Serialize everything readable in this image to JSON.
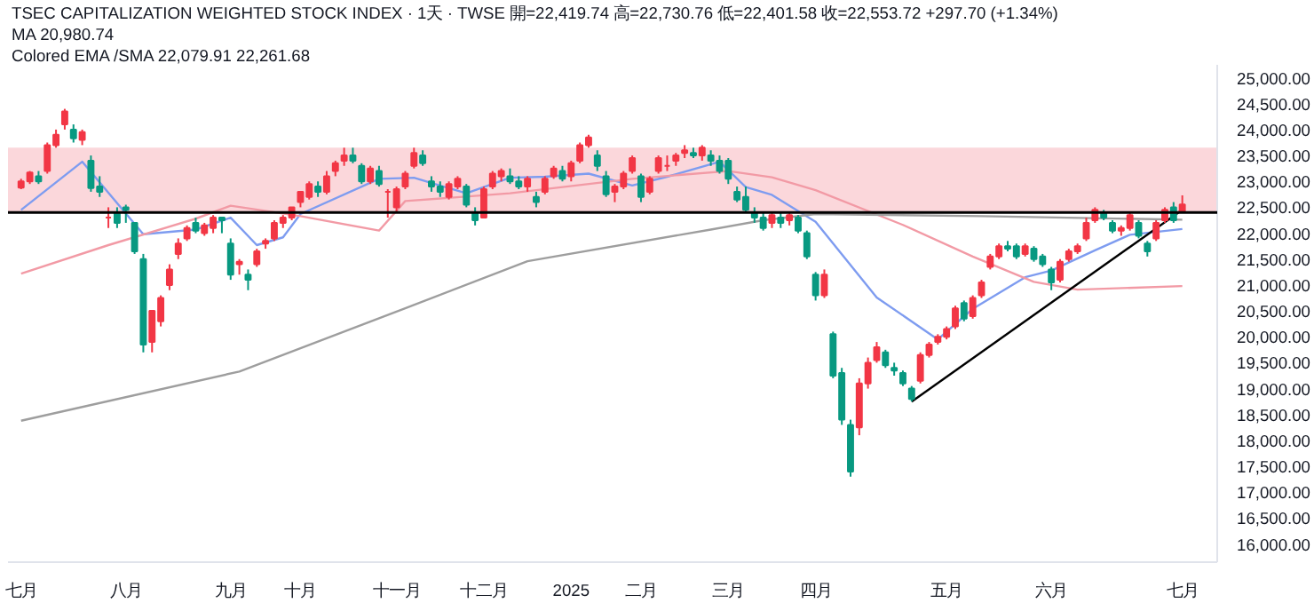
{
  "chart_data": {
    "type": "candlestick",
    "title": "TSEC CAPITALIZATION WEIGHTED STOCK INDEX · 1天 · TWSE  開=22,419.74  高=22,730.76  低=22,401.58  收=22,553.72  +297.70 (+1.34%)",
    "annotations": [
      "MA  20,980.74",
      "Colored EMA /SMA  22,079.91  22,261.68"
    ],
    "categories": [
      "七月",
      null,
      null,
      null,
      null,
      null,
      null,
      null,
      null,
      null,
      null,
      null,
      "八月",
      null,
      null,
      null,
      null,
      null,
      null,
      null,
      null,
      null,
      null,
      null,
      "九月",
      null,
      null,
      null,
      null,
      null,
      null,
      null,
      "十月",
      null,
      null,
      null,
      null,
      null,
      null,
      null,
      null,
      null,
      null,
      "十一月",
      null,
      null,
      null,
      null,
      null,
      null,
      null,
      null,
      null,
      "十二月",
      null,
      null,
      null,
      null,
      null,
      null,
      null,
      null,
      null,
      "2025",
      null,
      null,
      null,
      null,
      null,
      null,
      null,
      "二月",
      null,
      null,
      null,
      null,
      null,
      null,
      null,
      null,
      null,
      "三月",
      null,
      null,
      null,
      null,
      null,
      null,
      null,
      null,
      null,
      "四月",
      null,
      null,
      null,
      null,
      null,
      null,
      null,
      null,
      null,
      null,
      null,
      null,
      null,
      null,
      "五月",
      null,
      null,
      null,
      null,
      null,
      null,
      null,
      null,
      null,
      null,
      null,
      "六月",
      null,
      null,
      null,
      null,
      null,
      null,
      null,
      null,
      null,
      null,
      null,
      null,
      null,
      null,
      "七月"
    ],
    "ohlc": [
      [
        22880,
        23050,
        22850,
        23000
      ],
      [
        23000,
        23200,
        22950,
        23170
      ],
      [
        23100,
        23200,
        22950,
        23000
      ],
      [
        23200,
        23750,
        23150,
        23700
      ],
      [
        23700,
        24000,
        23650,
        23900
      ],
      [
        24100,
        24400,
        24000,
        24350
      ],
      [
        24000,
        24100,
        23750,
        23830
      ],
      [
        23800,
        24000,
        23700,
        23950
      ],
      [
        23400,
        23500,
        22800,
        22870
      ],
      [
        22900,
        23100,
        22700,
        22800
      ],
      [
        22300,
        22500,
        22100,
        22300
      ],
      [
        22400,
        22500,
        22100,
        22200
      ],
      [
        22500,
        22550,
        22200,
        22450
      ],
      [
        22200,
        22200,
        21600,
        21650
      ],
      [
        21500,
        21600,
        19700,
        19850
      ],
      [
        19900,
        20500,
        19700,
        20500
      ],
      [
        20300,
        20800,
        20200,
        20750
      ],
      [
        21000,
        21400,
        20900,
        21300
      ],
      [
        21600,
        21900,
        21500,
        21800
      ],
      [
        21900,
        22150,
        21850,
        22100
      ],
      [
        22200,
        22300,
        22000,
        22050
      ],
      [
        22000,
        22200,
        21950,
        22150
      ],
      [
        22100,
        22350,
        22000,
        22300
      ],
      [
        22300,
        22300,
        22000,
        22250
      ],
      [
        21800,
        21900,
        21100,
        21200
      ],
      [
        21400,
        21500,
        21200,
        21450
      ],
      [
        21200,
        21300,
        20900,
        21100
      ],
      [
        21400,
        21700,
        21350,
        21650
      ],
      [
        21800,
        21900,
        21700,
        21850
      ],
      [
        21900,
        22250,
        21850,
        22200
      ],
      [
        22200,
        22350,
        22100,
        22300
      ],
      [
        22300,
        22500,
        22250,
        22500
      ],
      [
        22600,
        22800,
        22500,
        22800
      ],
      [
        22700,
        23000,
        22650,
        22950
      ],
      [
        22900,
        23000,
        22700,
        22800
      ],
      [
        22800,
        23200,
        22750,
        23100
      ],
      [
        23200,
        23400,
        23100,
        23350
      ],
      [
        23400,
        23650,
        23300,
        23500
      ],
      [
        23500,
        23650,
        23350,
        23400
      ],
      [
        23300,
        23350,
        22950,
        23000
      ],
      [
        23000,
        23300,
        22950,
        23250
      ],
      [
        23200,
        23300,
        22900,
        22950
      ],
      [
        22800,
        22850,
        22300,
        22800
      ],
      [
        22500,
        22900,
        22400,
        22850
      ],
      [
        22900,
        23200,
        22850,
        23150
      ],
      [
        23300,
        23650,
        23250,
        23550
      ],
      [
        23500,
        23600,
        23300,
        23350
      ],
      [
        23000,
        23100,
        22800,
        22900
      ],
      [
        22900,
        23000,
        22700,
        22800
      ],
      [
        22700,
        23000,
        22650,
        22950
      ],
      [
        22900,
        23100,
        22850,
        23050
      ],
      [
        22900,
        22950,
        22500,
        22550
      ],
      [
        22400,
        22500,
        22150,
        22250
      ],
      [
        22300,
        22900,
        22300,
        22850
      ],
      [
        22900,
        23200,
        22850,
        23150
      ],
      [
        23100,
        23250,
        23000,
        23200
      ],
      [
        23100,
        23250,
        22950,
        23000
      ],
      [
        23000,
        23100,
        22850,
        22900
      ],
      [
        22900,
        23100,
        22800,
        23050
      ],
      [
        22700,
        22800,
        22500,
        22600
      ],
      [
        22800,
        23100,
        22750,
        23050
      ],
      [
        23100,
        23300,
        23050,
        23250
      ],
      [
        23200,
        23300,
        23000,
        23050
      ],
      [
        23100,
        23400,
        23000,
        23350
      ],
      [
        23400,
        23750,
        23350,
        23700
      ],
      [
        23700,
        23900,
        23650,
        23850
      ],
      [
        23500,
        23600,
        23200,
        23300
      ],
      [
        23100,
        23200,
        22700,
        22750
      ],
      [
        22800,
        22950,
        22600,
        22900
      ],
      [
        22900,
        23200,
        22850,
        23150
      ],
      [
        23200,
        23500,
        23150,
        23450
      ],
      [
        23100,
        23150,
        22600,
        22700
      ],
      [
        22800,
        23100,
        22750,
        23050
      ],
      [
        23200,
        23500,
        23150,
        23450
      ],
      [
        23300,
        23500,
        23200,
        23300
      ],
      [
        23400,
        23550,
        23300,
        23500
      ],
      [
        23550,
        23700,
        23450,
        23600
      ],
      [
        23550,
        23650,
        23450,
        23500
      ],
      [
        23500,
        23700,
        23400,
        23650
      ],
      [
        23500,
        23600,
        23300,
        23400
      ],
      [
        23400,
        23500,
        23150,
        23200
      ],
      [
        23400,
        23450,
        22950,
        23050
      ],
      [
        22800,
        22900,
        22600,
        22650
      ],
      [
        22700,
        22900,
        22400,
        22450
      ],
      [
        22400,
        22500,
        22200,
        22300
      ],
      [
        22300,
        22400,
        22050,
        22100
      ],
      [
        22200,
        22400,
        22100,
        22350
      ],
      [
        22300,
        22400,
        22100,
        22200
      ],
      [
        22250,
        22400,
        22150,
        22350
      ],
      [
        22300,
        22350,
        22000,
        22050
      ],
      [
        22000,
        22050,
        21500,
        21550
      ],
      [
        21200,
        21250,
        20700,
        20800
      ],
      [
        20800,
        21300,
        20750,
        21200
      ],
      [
        20050,
        20100,
        19200,
        19250
      ],
      [
        19300,
        19400,
        18300,
        18400
      ],
      [
        18300,
        18400,
        17300,
        17400
      ],
      [
        18250,
        19200,
        18100,
        19100
      ],
      [
        19100,
        19600,
        19000,
        19500
      ],
      [
        19550,
        19900,
        19500,
        19800
      ],
      [
        19700,
        19750,
        19400,
        19450
      ],
      [
        19400,
        19500,
        19250,
        19350
      ],
      [
        19300,
        19350,
        19050,
        19100
      ],
      [
        19000,
        19050,
        18750,
        18800
      ],
      [
        19150,
        19700,
        19100,
        19650
      ],
      [
        19650,
        19900,
        19600,
        19850
      ],
      [
        19900,
        20050,
        19850,
        20000
      ],
      [
        20000,
        20200,
        19950,
        20150
      ],
      [
        20200,
        20600,
        20150,
        20550
      ],
      [
        20650,
        20700,
        20300,
        20350
      ],
      [
        20400,
        20800,
        20350,
        20750
      ],
      [
        20800,
        21100,
        20750,
        21050
      ],
      [
        21350,
        21600,
        21300,
        21550
      ],
      [
        21550,
        21800,
        21500,
        21750
      ],
      [
        21750,
        21850,
        21650,
        21700
      ],
      [
        21750,
        21800,
        21500,
        21550
      ],
      [
        21600,
        21800,
        21550,
        21750
      ],
      [
        21700,
        21750,
        21450,
        21500
      ],
      [
        21550,
        21600,
        21350,
        21400
      ],
      [
        21300,
        21350,
        20900,
        21050
      ],
      [
        21100,
        21500,
        21050,
        21450
      ],
      [
        21500,
        21700,
        21450,
        21650
      ],
      [
        21650,
        21800,
        21600,
        21750
      ],
      [
        21900,
        22300,
        21850,
        22200
      ],
      [
        22250,
        22500,
        22200,
        22450
      ],
      [
        22400,
        22450,
        22250,
        22300
      ],
      [
        22200,
        22250,
        22000,
        22050
      ],
      [
        22050,
        22150,
        21950,
        22100
      ],
      [
        22100,
        22400,
        22050,
        22350
      ],
      [
        22200,
        22250,
        21900,
        21950
      ],
      [
        21800,
        21850,
        21550,
        21650
      ],
      [
        21900,
        22250,
        21850,
        22200
      ],
      [
        22250,
        22500,
        22200,
        22450
      ],
      [
        22500,
        22600,
        22200,
        22250
      ],
      [
        22419.74,
        22730.76,
        22401.58,
        22553.72
      ]
    ],
    "series": [
      {
        "type": "line",
        "color": "#7e9cf0",
        "values": [
          22450,
          null,
          null,
          null,
          null,
          null,
          null,
          23380,
          null,
          null,
          null,
          null,
          null,
          null,
          21980,
          null,
          null,
          null,
          null,
          null,
          22070,
          null,
          null,
          null,
          22300,
          null,
          null,
          21770,
          null,
          null,
          21920,
          null,
          22370,
          null,
          null,
          null,
          null,
          null,
          null,
          null,
          null,
          23050,
          null,
          null,
          null,
          23070,
          null,
          null,
          null,
          null,
          null,
          22770,
          null,
          null,
          null,
          null,
          23070,
          null,
          null,
          null,
          23090,
          null,
          null,
          null,
          null,
          23150,
          null,
          null,
          null,
          null,
          22920,
          null,
          null,
          null,
          23090,
          null,
          null,
          null,
          null,
          null,
          23380,
          null,
          null,
          22890,
          null,
          null,
          22740,
          null,
          null,
          null,
          null,
          22220,
          null,
          null,
          null,
          null,
          null,
          null,
          20760,
          null,
          null,
          null,
          null,
          null,
          null,
          19950,
          null,
          null,
          null,
          20540,
          null,
          null,
          null,
          null,
          null,
          21150,
          null,
          null,
          21280,
          null,
          null,
          null,
          null,
          21670,
          null,
          null,
          null,
          21970,
          null,
          null,
          null,
          null,
          null,
          22080
        ]
      },
      {
        "type": "line",
        "color": "#f29aa5",
        "values": [
          21220,
          null,
          null,
          null,
          null,
          null,
          null,
          null,
          null,
          null,
          21770,
          null,
          null,
          null,
          null,
          null,
          null,
          null,
          null,
          null,
          22280,
          null,
          null,
          null,
          22530,
          null,
          null,
          null,
          null,
          null,
          null,
          null,
          22330,
          null,
          null,
          null,
          null,
          null,
          null,
          null,
          null,
          22050,
          null,
          null,
          22620,
          null,
          null,
          null,
          null,
          null,
          null,
          null,
          null,
          null,
          null,
          null,
          22770,
          null,
          null,
          null,
          null,
          null,
          null,
          null,
          null,
          null,
          null,
          null,
          null,
          null,
          23050,
          null,
          null,
          null,
          null,
          null,
          null,
          null,
          null,
          null,
          null,
          23200,
          null,
          null,
          null,
          null,
          23080,
          null,
          null,
          null,
          null,
          22830,
          null,
          null,
          null,
          null,
          null,
          null,
          null,
          null,
          null,
          22160,
          null,
          null,
          null,
          null,
          null,
          null,
          null,
          21550,
          null,
          null,
          null,
          null,
          null,
          null,
          21060,
          null,
          null,
          null,
          null,
          20910,
          null,
          null,
          null,
          null,
          null,
          null,
          null,
          null,
          null,
          null,
          null,
          20980
        ]
      },
      {
        "type": "line",
        "color": "#9e9e9e",
        "values": [
          18380,
          null,
          null,
          null,
          null,
          null,
          null,
          null,
          null,
          null,
          null,
          null,
          null,
          null,
          null,
          null,
          null,
          null,
          null,
          null,
          null,
          null,
          null,
          null,
          null,
          19330,
          null,
          null,
          null,
          null,
          null,
          null,
          null,
          null,
          null,
          null,
          null,
          null,
          null,
          null,
          null,
          null,
          null,
          null,
          20550,
          null,
          null,
          null,
          null,
          null,
          null,
          null,
          null,
          null,
          null,
          null,
          null,
          null,
          21460,
          null,
          null,
          null,
          null,
          null,
          null,
          null,
          null,
          null,
          null,
          null,
          null,
          null,
          null,
          null,
          null,
          null,
          null,
          null,
          null,
          22070,
          null,
          null,
          null,
          null,
          null,
          22250,
          null,
          null,
          null,
          null,
          null,
          22370,
          null,
          null,
          null,
          null,
          null,
          null,
          null,
          null,
          null,
          null,
          null,
          null,
          null,
          null,
          null,
          null,
          null,
          null,
          22330,
          null,
          null,
          null,
          null,
          null,
          null,
          null,
          null,
          null,
          null,
          null,
          null,
          null,
          null,
          null,
          null,
          null,
          null,
          null,
          null,
          null,
          null,
          22260
        ]
      },
      {
        "type": "line",
        "color": "#000000",
        "values": [
          null,
          null,
          null,
          null,
          null,
          null,
          null,
          null,
          null,
          null,
          null,
          null,
          null,
          null,
          null,
          null,
          null,
          null,
          null,
          null,
          null,
          null,
          null,
          null,
          null,
          null,
          null,
          null,
          null,
          null,
          null,
          null,
          null,
          null,
          null,
          null,
          null,
          null,
          null,
          null,
          null,
          null,
          null,
          null,
          null,
          null,
          null,
          null,
          null,
          null,
          null,
          null,
          null,
          null,
          null,
          null,
          null,
          null,
          null,
          null,
          null,
          null,
          null,
          null,
          null,
          null,
          null,
          null,
          null,
          null,
          null,
          null,
          null,
          null,
          null,
          null,
          null,
          null,
          null,
          null,
          null,
          null,
          null,
          null,
          null,
          null,
          null,
          null,
          null,
          null,
          null,
          null,
          null,
          null,
          null,
          null,
          null,
          null,
          null,
          null,
          null,
          null,
          18750,
          null,
          null,
          null,
          null,
          null,
          null,
          null,
          null,
          null,
          null,
          null,
          null,
          null,
          null,
          null,
          null,
          null,
          null,
          null,
          null,
          null,
          null,
          null,
          null,
          null,
          null,
          null,
          null,
          null,
          null,
          22450
        ]
      }
    ],
    "bands": [
      {
        "axis": "y",
        "from": 22400,
        "to": 23650,
        "color": "#fbd3d7"
      }
    ],
    "ref_lines": [
      {
        "axis": "y",
        "value": 22400,
        "color": "#000000"
      }
    ],
    "ylim": [
      15650,
      25250
    ],
    "yticks": [
      {
        "value": 16000,
        "label": "16,000.00"
      },
      {
        "value": 16500,
        "label": "16,500.00"
      },
      {
        "value": 17000,
        "label": "17,000.00"
      },
      {
        "value": 17500,
        "label": "17,500.00"
      },
      {
        "value": 18000,
        "label": "18,000.00"
      },
      {
        "value": 18500,
        "label": "18,500.00"
      },
      {
        "value": 19000,
        "label": "19,000.00"
      },
      {
        "value": 19500,
        "label": "19,500.00"
      },
      {
        "value": 20000,
        "label": "20,000.00"
      },
      {
        "value": 20500,
        "label": "20,500.00"
      },
      {
        "value": 21000,
        "label": "21,000.00"
      },
      {
        "value": 21500,
        "label": "21,500.00"
      },
      {
        "value": 22000,
        "label": "22,000.00"
      },
      {
        "value": 22500,
        "label": "22,500.00"
      },
      {
        "value": 23000,
        "label": "23,000.00"
      },
      {
        "value": 23500,
        "label": "23,500.00"
      },
      {
        "value": 24000,
        "label": "24,000.00"
      },
      {
        "value": 24500,
        "label": "24,500.00"
      },
      {
        "value": 25000,
        "label": "25,000.00"
      }
    ]
  }
}
